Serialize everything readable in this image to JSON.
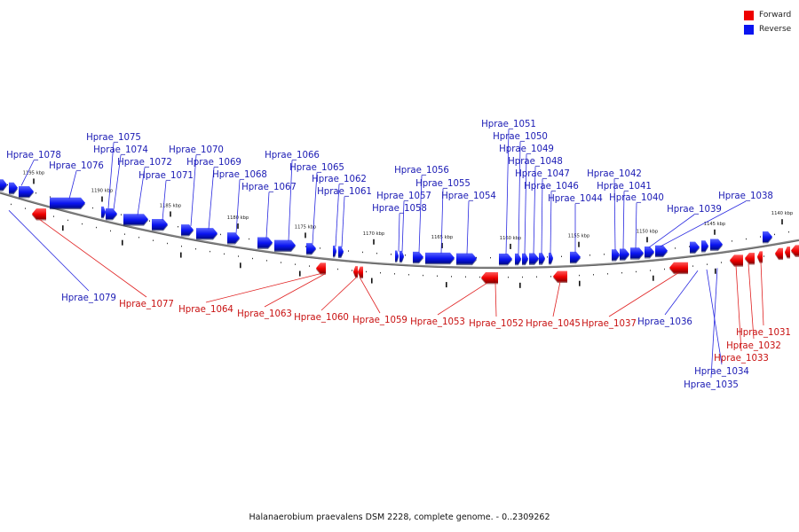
{
  "legend": {
    "forward_label": "Forward",
    "reverse_label": "Reverse",
    "forward_color": "#ee0000",
    "reverse_color": "#0a14f0"
  },
  "caption": "Halanaerobium praevalens DSM 2228, complete genome. - 0..2309262",
  "scale": {
    "ticks": [
      {
        "label": "1195 kbp",
        "pos": 1195
      },
      {
        "label": "1190 kbp",
        "pos": 1190
      },
      {
        "label": "1185 kbp",
        "pos": 1185
      },
      {
        "label": "1180 kbp",
        "pos": 1180
      },
      {
        "label": "1175 kbp",
        "pos": 1175
      },
      {
        "label": "1170 kbp",
        "pos": 1170
      },
      {
        "label": "1165 kbp",
        "pos": 1165
      },
      {
        "label": "1160 kbp",
        "pos": 1160
      },
      {
        "label": "1155 kbp",
        "pos": 1155
      },
      {
        "label": "1150 kbp",
        "pos": 1150
      },
      {
        "label": "1145 kbp",
        "pos": 1145
      },
      {
        "label": "1140 kbp",
        "pos": 1140
      }
    ]
  },
  "genes": [
    {
      "name": "Hprae_1078",
      "strand": "reverse"
    },
    {
      "name": "Hprae_1076",
      "strand": "reverse"
    },
    {
      "name": "Hprae_1075",
      "strand": "reverse"
    },
    {
      "name": "Hprae_1074",
      "strand": "reverse"
    },
    {
      "name": "Hprae_1072",
      "strand": "reverse"
    },
    {
      "name": "Hprae_1071",
      "strand": "reverse"
    },
    {
      "name": "Hprae_1070",
      "strand": "reverse"
    },
    {
      "name": "Hprae_1069",
      "strand": "reverse"
    },
    {
      "name": "Hprae_1068",
      "strand": "reverse"
    },
    {
      "name": "Hprae_1067",
      "strand": "reverse"
    },
    {
      "name": "Hprae_1066",
      "strand": "reverse"
    },
    {
      "name": "Hprae_1065",
      "strand": "reverse"
    },
    {
      "name": "Hprae_1062",
      "strand": "reverse"
    },
    {
      "name": "Hprae_1061",
      "strand": "reverse"
    },
    {
      "name": "Hprae_1058",
      "strand": "reverse"
    },
    {
      "name": "Hprae_1057",
      "strand": "reverse"
    },
    {
      "name": "Hprae_1056",
      "strand": "reverse"
    },
    {
      "name": "Hprae_1055",
      "strand": "reverse"
    },
    {
      "name": "Hprae_1054",
      "strand": "reverse"
    },
    {
      "name": "Hprae_1051",
      "strand": "reverse"
    },
    {
      "name": "Hprae_1050",
      "strand": "reverse"
    },
    {
      "name": "Hprae_1049",
      "strand": "reverse"
    },
    {
      "name": "Hprae_1048",
      "strand": "reverse"
    },
    {
      "name": "Hprae_1047",
      "strand": "reverse"
    },
    {
      "name": "Hprae_1046",
      "strand": "reverse"
    },
    {
      "name": "Hprae_1044",
      "strand": "reverse"
    },
    {
      "name": "Hprae_1042",
      "strand": "reverse"
    },
    {
      "name": "Hprae_1041",
      "strand": "reverse"
    },
    {
      "name": "Hprae_1040",
      "strand": "reverse"
    },
    {
      "name": "Hprae_1039",
      "strand": "reverse"
    },
    {
      "name": "Hprae_1038",
      "strand": "reverse"
    },
    {
      "name": "Hprae_1079",
      "strand": "reverse"
    },
    {
      "name": "Hprae_1077",
      "strand": "forward"
    },
    {
      "name": "Hprae_1064",
      "strand": "forward"
    },
    {
      "name": "Hprae_1063",
      "strand": "forward"
    },
    {
      "name": "Hprae_1060",
      "strand": "forward"
    },
    {
      "name": "Hprae_1059",
      "strand": "forward"
    },
    {
      "name": "Hprae_1053",
      "strand": "forward"
    },
    {
      "name": "Hprae_1052",
      "strand": "forward"
    },
    {
      "name": "Hprae_1045",
      "strand": "forward"
    },
    {
      "name": "Hprae_1037",
      "strand": "forward"
    },
    {
      "name": "Hprae_1036",
      "strand": "reverse"
    },
    {
      "name": "Hprae_1035",
      "strand": "reverse"
    },
    {
      "name": "Hprae_1034",
      "strand": "reverse"
    },
    {
      "name": "Hprae_1033",
      "strand": "forward"
    },
    {
      "name": "Hprae_1032",
      "strand": "forward"
    },
    {
      "name": "Hprae_1031",
      "strand": "forward"
    }
  ]
}
